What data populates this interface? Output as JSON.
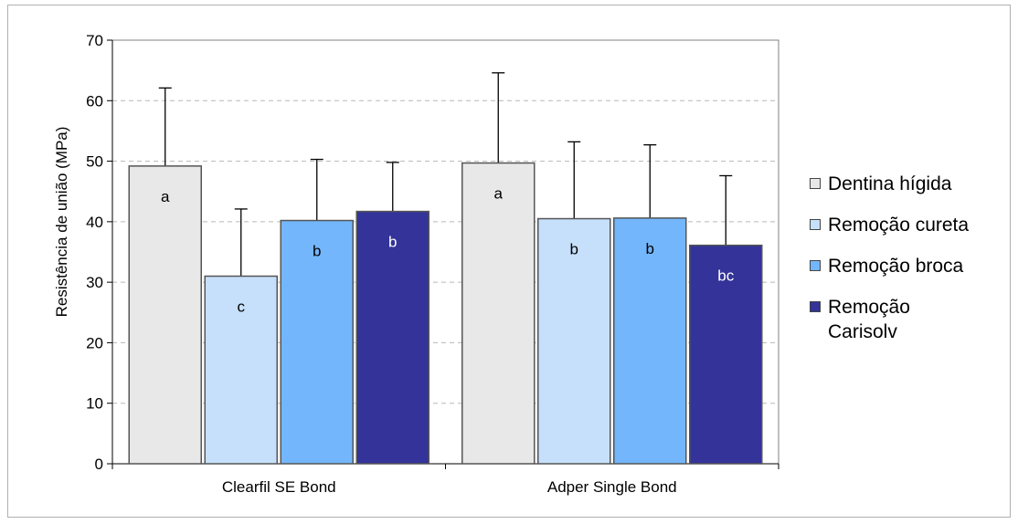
{
  "chart_data": {
    "type": "bar",
    "ylabel": "Resistência de união (MPa)",
    "xlabel": "",
    "ylim": [
      0,
      70
    ],
    "yticks": [
      0,
      10,
      20,
      30,
      40,
      50,
      60,
      70
    ],
    "grid": true,
    "legend_position": "right",
    "categories": [
      "Clearfil SE Bond",
      "Adper Single Bond"
    ],
    "series": [
      {
        "name": "Dentina hígida",
        "color": "#e8e8e8",
        "values": [
          49.2,
          49.7
        ],
        "errors": [
          12.9,
          14.9
        ],
        "letters": [
          "a",
          "a"
        ]
      },
      {
        "name": "Remoção cureta",
        "color": "#c6e0fb",
        "values": [
          31.0,
          40.5
        ],
        "errors": [
          11.1,
          12.7
        ],
        "letters": [
          "c",
          "b"
        ]
      },
      {
        "name": "Remoção broca",
        "color": "#74b6fb",
        "values": [
          40.2,
          40.6
        ],
        "errors": [
          10.1,
          12.1
        ],
        "letters": [
          "b",
          "b"
        ]
      },
      {
        "name": "Remoção Carisolv",
        "color": "#333399",
        "values": [
          41.7,
          36.1
        ],
        "errors": [
          8.1,
          11.5
        ],
        "letters": [
          "b",
          "bc"
        ]
      }
    ]
  }
}
